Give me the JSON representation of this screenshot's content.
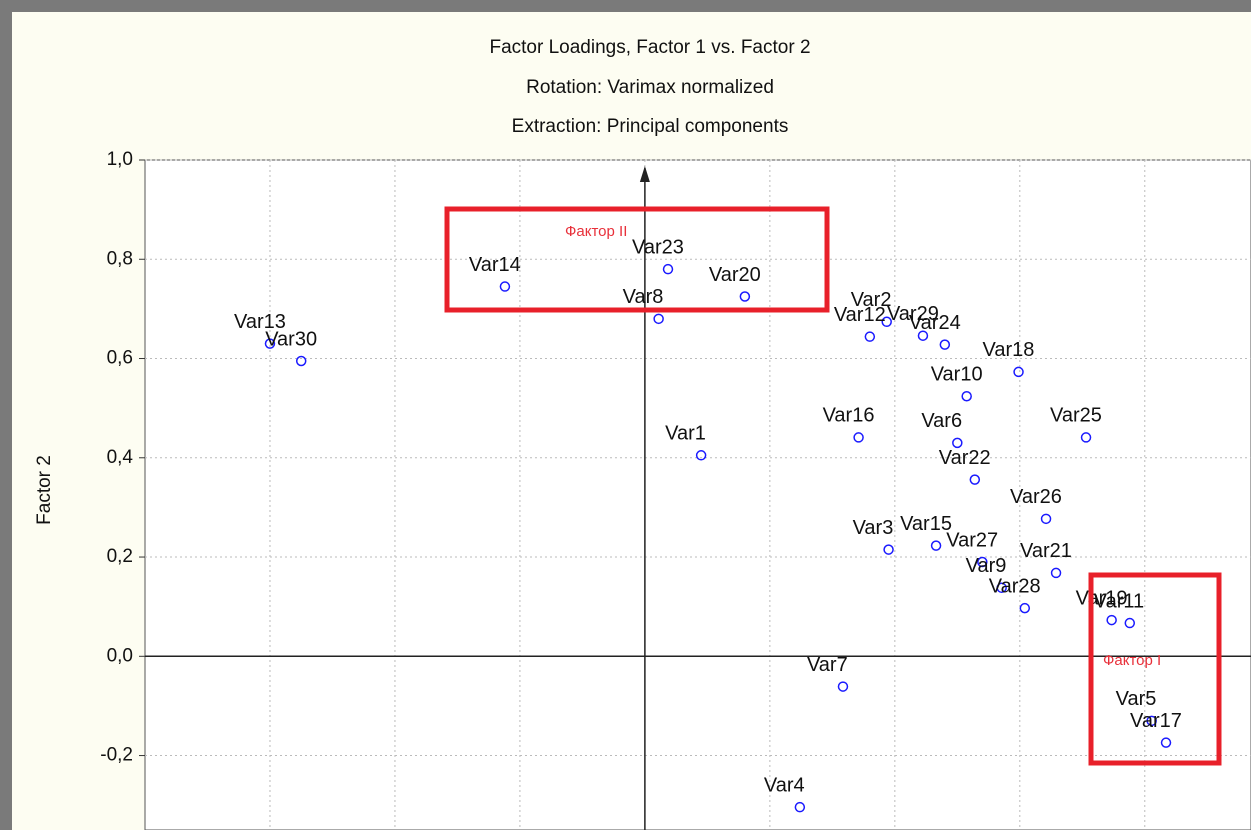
{
  "chart_data": {
    "type": "scatter",
    "title": "Factor Loadings, Factor 1 vs. Factor 2",
    "subtitle": [
      "Rotation: Varimax normalized",
      "Extraction: Principal components"
    ],
    "y_label": "Factor 2",
    "annotations": [
      "Фактор II",
      "Фактор I"
    ],
    "point_labels": [
      "Var13",
      "Var30",
      "Var14",
      "Var23",
      "Var8",
      "Var20",
      "Var1",
      "Var2",
      "Var12",
      "Var29",
      "Var24",
      "Var18",
      "Var10",
      "Var16",
      "Var6",
      "Var25",
      "Var22",
      "Var26",
      "Var3",
      "Var15",
      "Var27",
      "Var9",
      "Var21",
      "Var28",
      "Var19",
      "Var11",
      "Var7",
      "Var5",
      "Var17",
      "Var4"
    ],
    "x": [
      -0.6,
      -0.55,
      -0.224,
      0.037,
      0.022,
      0.16,
      0.09,
      0.387,
      0.36,
      0.445,
      0.48,
      0.598,
      0.515,
      0.342,
      0.5,
      0.706,
      0.528,
      0.642,
      0.39,
      0.466,
      0.54,
      0.571,
      0.658,
      0.608,
      0.747,
      0.776,
      0.317,
      0.811,
      0.834,
      0.248
    ],
    "values": [
      0.63,
      0.595,
      0.745,
      0.78,
      0.68,
      0.725,
      0.405,
      0.674,
      0.644,
      0.646,
      0.628,
      0.573,
      0.524,
      0.441,
      0.43,
      0.441,
      0.356,
      0.277,
      0.215,
      0.223,
      0.19,
      0.138,
      0.168,
      0.097,
      0.073,
      0.067,
      -0.061,
      -0.13,
      -0.174,
      -0.304
    ],
    "color": "#1a1aff",
    "xlim": [
      -0.8,
      0.97
    ],
    "ylim": [
      -0.35,
      1.0
    ],
    "xticks": [
      -0.6,
      -0.4,
      -0.2,
      0,
      0.2,
      0.4,
      0.6,
      0.8
    ],
    "yticks": [
      {
        "value": 1,
        "label": "1,0"
      },
      {
        "value": 0.8,
        "label": "0,8"
      },
      {
        "value": 0.6,
        "label": "0,6"
      },
      {
        "value": 0.4,
        "label": "0,4"
      },
      {
        "value": 0.2,
        "label": "0,2"
      },
      {
        "value": 0,
        "label": "0,0"
      },
      {
        "value": -0.2,
        "label": "-0,2"
      }
    ],
    "grid": true
  }
}
